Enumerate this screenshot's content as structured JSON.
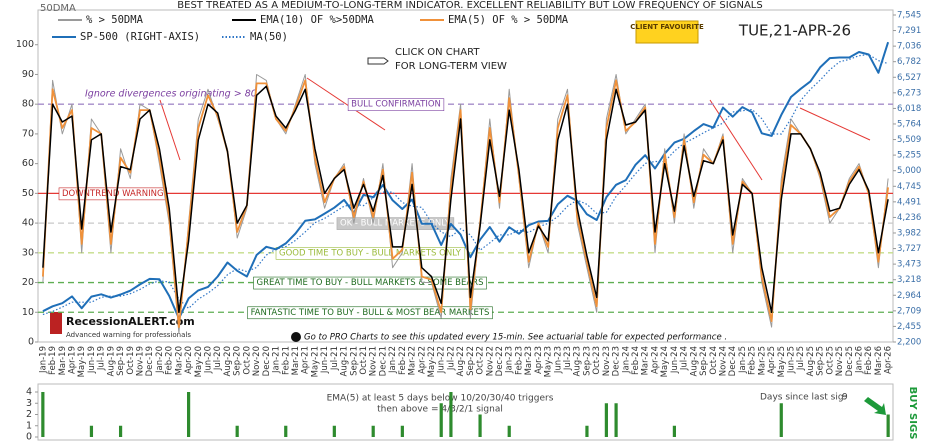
{
  "chart_data": [
    {
      "type": "line",
      "title": "BEST TREATED AS A MEDIUM-TO-LONG-TERM INDICATOR. EXCELLENT RELIABILITY BUT LOW FREQUENCY OF SIGNALS",
      "date_label": "TUE,21-APR-26",
      "badge": "CLIENT FAVOURITE",
      "click_note": [
        "CLICK ON CHART",
        "FOR LONG-TERM VIEW"
      ],
      "y_axis_label": "50DMA",
      "divergence_note": "Ignore divergences originating > 80",
      "footer_note": "Go to PRO Charts to see this updated every 15-min. See actuarial table for expected performance .",
      "logo": "RecessionALERT.com",
      "logo_tagline": "Advanced warning for professionals",
      "categories": [
        "Jan-19",
        "Feb-19",
        "Mar-19",
        "Apr-19",
        "May-19",
        "Jun-19",
        "Jul-19",
        "Aug-19",
        "Sep-19",
        "Oct-19",
        "Nov-19",
        "Dec-19",
        "Jan-20",
        "Feb-20",
        "Mar-20",
        "Apr-20",
        "May-20",
        "Jun-20",
        "Jul-20",
        "Aug-20",
        "Sep-20",
        "Oct-20",
        "Nov-20",
        "Dec-20",
        "Jan-21",
        "Feb-21",
        "Mar-21",
        "Apr-21",
        "May-21",
        "Jun-21",
        "Jul-21",
        "Aug-21",
        "Sep-21",
        "Oct-21",
        "Nov-21",
        "Dec-21",
        "Jan-22",
        "Feb-22",
        "Mar-22",
        "Apr-22",
        "May-22",
        "Jun-22",
        "Jul-22",
        "Aug-22",
        "Sep-22",
        "Oct-22",
        "Nov-22",
        "Dec-22",
        "Jan-23",
        "Feb-23",
        "Mar-23",
        "Apr-23",
        "May-23",
        "Jun-23",
        "Jul-23",
        "Aug-23",
        "Sep-23",
        "Oct-23",
        "Nov-23",
        "Dec-23",
        "Jan-24",
        "Feb-24",
        "Mar-24",
        "Apr-24",
        "May-24",
        "Jun-24",
        "Jul-24",
        "Aug-24",
        "Sep-24",
        "Oct-24",
        "Nov-24",
        "Dec-24",
        "Jan-25",
        "Feb-25",
        "Mar-25",
        "Apr-25",
        "May-25",
        "Jun-25",
        "Jul-25",
        "Aug-25",
        "Sep-25",
        "Oct-25",
        "Nov-25",
        "Dec-25",
        "Jan-26",
        "Feb-26",
        "Mar-26",
        "Apr-26"
      ],
      "series": [
        {
          "name": "% > 50DMA",
          "color": "#9a9a9a",
          "width": 1,
          "values": [
            20,
            88,
            70,
            80,
            30,
            75,
            70,
            30,
            65,
            55,
            80,
            78,
            60,
            40,
            3,
            40,
            75,
            85,
            75,
            65,
            35,
            45,
            90,
            88,
            75,
            70,
            80,
            90,
            60,
            45,
            55,
            60,
            40,
            55,
            40,
            60,
            25,
            30,
            60,
            20,
            20,
            8,
            55,
            80,
            8,
            40,
            75,
            45,
            85,
            55,
            25,
            40,
            30,
            75,
            85,
            40,
            25,
            10,
            75,
            90,
            70,
            75,
            80,
            30,
            65,
            40,
            70,
            45,
            65,
            60,
            70,
            30,
            55,
            50,
            20,
            5,
            55,
            75,
            70,
            65,
            55,
            40,
            45,
            55,
            60,
            50,
            25,
            55
          ]
        },
        {
          "name": "EMA(10) OF %>50DMA",
          "color": "#000000",
          "width": 1.5,
          "values": [
            25,
            80,
            74,
            76,
            38,
            68,
            70,
            37,
            59,
            58,
            75,
            78,
            65,
            45,
            10,
            34,
            68,
            80,
            77,
            64,
            40,
            46,
            83,
            86,
            76,
            72,
            78,
            85,
            65,
            50,
            55,
            58,
            45,
            53,
            44,
            56,
            32,
            32,
            53,
            25,
            22,
            13,
            48,
            75,
            15,
            39,
            68,
            49,
            78,
            58,
            30,
            39,
            34,
            68,
            80,
            45,
            29,
            15,
            68,
            85,
            73,
            74,
            78,
            37,
            60,
            44,
            66,
            49,
            61,
            60,
            68,
            36,
            53,
            50,
            25,
            10,
            48,
            70,
            70,
            65,
            57,
            44,
            45,
            53,
            58,
            51,
            30,
            48
          ]
        },
        {
          "name": "EMA(5) OF % > 50DMA",
          "color": "#f0913a",
          "width": 1.8,
          "values": [
            22,
            85,
            72,
            78,
            33,
            72,
            70,
            33,
            62,
            57,
            78,
            78,
            62,
            42,
            5,
            38,
            72,
            83,
            76,
            64,
            37,
            46,
            87,
            87,
            75,
            71,
            79,
            88,
            62,
            47,
            55,
            59,
            42,
            54,
            42,
            58,
            28,
            31,
            57,
            22,
            21,
            10,
            52,
            78,
            11,
            40,
            72,
            47,
            82,
            56,
            27,
            40,
            32,
            72,
            83,
            42,
            27,
            12,
            72,
            88,
            71,
            74,
            79,
            33,
            63,
            42,
            68,
            47,
            63,
            60,
            69,
            33,
            54,
            50,
            22,
            7,
            52,
            73,
            70,
            65,
            56,
            42,
            45,
            54,
            59,
            50,
            27,
            52
          ]
        },
        {
          "name": "SP-500 (RIGHT-AXIS)",
          "color": "#1f6fb8",
          "width": 2,
          "axis": "y2",
          "values": [
            2704,
            2784,
            2834,
            2946,
            2752,
            2942,
            2980,
            2926,
            2977,
            3038,
            3141,
            3231,
            3226,
            2954,
            2585,
            2912,
            3044,
            3100,
            3271,
            3500,
            3363,
            3270,
            3622,
            3756,
            3714,
            3811,
            3973,
            4181,
            4204,
            4298,
            4395,
            4523,
            4308,
            4605,
            4567,
            4766,
            4516,
            4374,
            4530,
            4132,
            4132,
            3785,
            4130,
            3955,
            3586,
            3872,
            4080,
            3840,
            4077,
            3970,
            4109,
            4169,
            4180,
            4450,
            4589,
            4508,
            4288,
            4194,
            4568,
            4770,
            4846,
            5096,
            5254,
            5036,
            5278,
            5460,
            5522,
            5648,
            5762,
            5705,
            6032,
            5882,
            6040,
            5955,
            5612,
            5569,
            5912,
            6205,
            6339,
            6460,
            6688,
            6840,
            6850,
            6850,
            6940,
            6900,
            6600,
            7100
          ]
        },
        {
          "name": "MA(50)",
          "color": "#2e75c6",
          "width": 1.2,
          "axis": "y2",
          "line_style": "dotted",
          "values": [
            2650,
            2700,
            2770,
            2850,
            2850,
            2850,
            2930,
            2950,
            2950,
            2990,
            3060,
            3150,
            3200,
            3180,
            2900,
            2750,
            2900,
            3000,
            3120,
            3300,
            3400,
            3350,
            3420,
            3620,
            3720,
            3760,
            3860,
            4000,
            4150,
            4220,
            4320,
            4420,
            4450,
            4430,
            4560,
            4650,
            4650,
            4480,
            4420,
            4400,
            4150,
            4000,
            3920,
            4050,
            3950,
            3700,
            3820,
            3950,
            3950,
            4030,
            3990,
            4080,
            4140,
            4250,
            4420,
            4520,
            4450,
            4300,
            4320,
            4580,
            4760,
            4950,
            5120,
            5150,
            5150,
            5320,
            5450,
            5530,
            5620,
            5700,
            5780,
            5960,
            5980,
            6000,
            5850,
            5600,
            5600,
            5850,
            6150,
            6330,
            6480,
            6650,
            6780,
            6820,
            6880,
            6900,
            6800,
            6750
          ]
        }
      ],
      "ylim": [
        0,
        110
      ],
      "yticks": [
        0,
        10,
        20,
        30,
        40,
        50,
        60,
        70,
        80,
        90,
        100
      ],
      "y2lim": [
        2200,
        7545
      ],
      "y2ticks": [
        {
          "value": 2200,
          "label": "2,200"
        },
        {
          "value": 2455,
          "label": "2,455"
        },
        {
          "value": 2709,
          "label": "2,709"
        },
        {
          "value": 2964,
          "label": "2,964"
        },
        {
          "value": 3218,
          "label": "3,218"
        },
        {
          "value": 3473,
          "label": "3,473"
        },
        {
          "value": 3727,
          "label": "3,727"
        },
        {
          "value": 3982,
          "label": "3,982"
        },
        {
          "value": 4236,
          "label": "4,236"
        },
        {
          "value": 4491,
          "label": "4,491"
        },
        {
          "value": 4745,
          "label": "4,745"
        },
        {
          "value": 5000,
          "label": "5,000"
        },
        {
          "value": 5255,
          "label": "5,255"
        },
        {
          "value": 5509,
          "label": "5,509"
        },
        {
          "value": 5764,
          "label": "5,764"
        },
        {
          "value": 6018,
          "label": "6,018"
        },
        {
          "value": 6273,
          "label": "6,273"
        },
        {
          "value": 6527,
          "label": "6,527"
        },
        {
          "value": 6782,
          "label": "6,782"
        },
        {
          "value": 7036,
          "label": "7,036"
        },
        {
          "value": 7291,
          "label": "7,291"
        },
        {
          "value": 7545,
          "label": "7,545"
        }
      ],
      "reference_lines": [
        {
          "value": 80,
          "label": "BULL CONFIRMATION",
          "color": "#a58cc9",
          "text_color": "#7b3fa0",
          "dashed": true
        },
        {
          "value": 50,
          "label": "DOWNTREND WARNING",
          "color": "#e53935",
          "text_color": "#c62828",
          "dashed": false
        },
        {
          "value": 40,
          "label": "OK - BULL MARKETS ONLY",
          "color": "#c8c8c8",
          "text_color": "#ffffff",
          "dashed": true
        },
        {
          "value": 30,
          "label": "GOOD TIME TO BUY - BULL MARKETS ONLY",
          "color": "#c5dd8a",
          "text_color": "#9bbb3b",
          "dashed": true
        },
        {
          "value": 20,
          "label": "GREAT TIME TO BUY - BULL MARKETS & SOME BEARS",
          "color": "#5fae52",
          "text_color": "#1f6b1f",
          "dashed": true
        },
        {
          "value": 10,
          "label": "FANTASTIC TIME TO BUY - BULL & MOST BEAR MARKETS",
          "color": "#5fae52",
          "text_color": "#1f6b1f",
          "dashed": true
        }
      ]
    },
    {
      "type": "bar",
      "color": "#2e8b2e",
      "values": [
        4,
        null,
        null,
        null,
        null,
        1,
        null,
        null,
        1,
        null,
        null,
        null,
        null,
        null,
        null,
        4,
        null,
        null,
        null,
        null,
        1,
        null,
        null,
        null,
        null,
        1,
        null,
        null,
        null,
        null,
        1,
        null,
        null,
        null,
        1,
        null,
        null,
        1,
        null,
        null,
        null,
        3,
        4,
        null,
        null,
        2,
        null,
        null,
        1,
        null,
        null,
        null,
        null,
        null,
        null,
        null,
        1,
        null,
        3,
        3,
        null,
        null,
        null,
        null,
        null,
        1,
        null,
        null,
        null,
        null,
        null,
        null,
        null,
        null,
        null,
        null,
        3,
        null,
        null,
        null,
        null,
        null,
        null,
        null,
        null,
        null,
        null,
        2
      ],
      "ylim": [
        0,
        4
      ],
      "yticks": [
        0,
        1,
        2,
        3,
        4
      ],
      "notes": [
        "EMA(5) at least 5 days below 10/20/30/40 triggers",
        "then above = 4/3/2/1 signal"
      ],
      "days_label": "Days since last sig:",
      "days_since_last_signal": 9,
      "side_label": "BUY SIGS"
    }
  ]
}
